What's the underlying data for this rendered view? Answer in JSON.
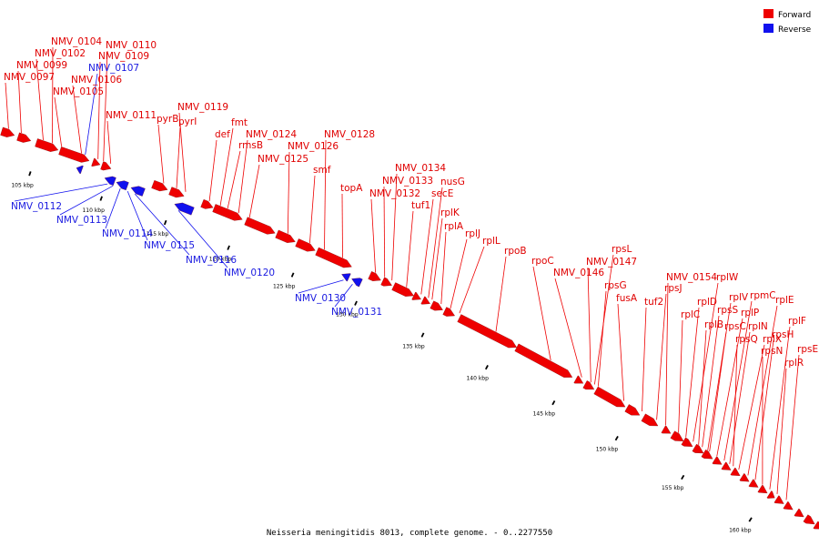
{
  "caption": "Neisseria meningitidis 8013, complete genome. - 0..2277550",
  "legend": [
    {
      "label": "Forward",
      "color": "#ee0000"
    },
    {
      "label": "Reverse",
      "color": "#1111ee"
    }
  ],
  "colors": {
    "forward": "#ee0000",
    "reverse": "#1111ee",
    "backbone": "#888888"
  },
  "ticks": [
    "105 kbp",
    "110 kbp",
    "115 kbp",
    "120 kbp",
    "125 kbp",
    "130 kbp",
    "135 kbp",
    "140 kbp",
    "145 kbp",
    "150 kbp",
    "155 kbp",
    "160 kbp"
  ],
  "forward_labels": [
    "NMV_0097",
    "NMV_0099",
    "NMV_0102",
    "NMV_0104",
    "NMV_0105",
    "NMV_0106",
    "NMV_0109",
    "NMV_0110",
    "NMV_0111",
    "pyrB",
    "pyrI",
    "NMV_0119",
    "def",
    "fmt",
    "rmsB",
    "NMV_0124",
    "NMV_0125",
    "NMV_0126",
    "smf",
    "NMV_0128",
    "topA",
    "NMV_0132",
    "NMV_0133",
    "NMV_0134",
    "tuf1",
    "secE",
    "nusG",
    "rplK",
    "rplA",
    "rplJ",
    "rplL",
    "rpoB",
    "rpoC",
    "NMV_0146",
    "NMV_0147",
    "rpsL",
    "rpsG",
    "fusA",
    "tuf2",
    "rpsJ",
    "NMV_0154",
    "rplC",
    "rplD",
    "rplW",
    "rplB",
    "rpsS",
    "rplV",
    "rpsC",
    "rplP",
    "rpmC",
    "rplN",
    "rpsQ",
    "rplX",
    "rplE",
    "rpsH",
    "rpsN",
    "rplF",
    "rplR",
    "rpsE"
  ],
  "reverse_labels": [
    "NMV_0107",
    "NMV_0112",
    "NMV_0113",
    "NMV_0114",
    "NMV_0115",
    "NMV_0116",
    "NMV_0120",
    "NMV_0130",
    "NMV_0131"
  ]
}
